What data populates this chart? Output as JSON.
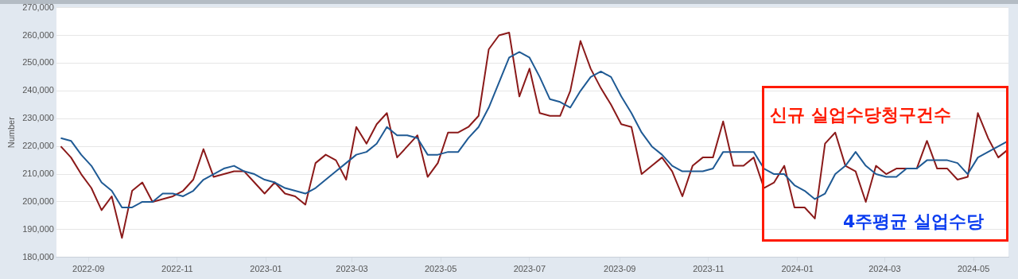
{
  "chart_data": {
    "type": "line",
    "ylabel": "Number",
    "x": [
      "2022-08-13",
      "2022-08-20",
      "2022-08-27",
      "2022-09-03",
      "2022-09-10",
      "2022-09-17",
      "2022-09-24",
      "2022-10-01",
      "2022-10-08",
      "2022-10-15",
      "2022-10-22",
      "2022-10-29",
      "2022-11-05",
      "2022-11-12",
      "2022-11-19",
      "2022-11-26",
      "2022-12-03",
      "2022-12-10",
      "2022-12-17",
      "2022-12-24",
      "2022-12-31",
      "2023-01-07",
      "2023-01-14",
      "2023-01-21",
      "2023-01-28",
      "2023-02-04",
      "2023-02-11",
      "2023-02-18",
      "2023-02-25",
      "2023-03-04",
      "2023-03-11",
      "2023-03-18",
      "2023-03-25",
      "2023-04-01",
      "2023-04-08",
      "2023-04-15",
      "2023-04-22",
      "2023-04-29",
      "2023-05-06",
      "2023-05-13",
      "2023-05-20",
      "2023-05-27",
      "2023-06-03",
      "2023-06-10",
      "2023-06-17",
      "2023-06-24",
      "2023-07-01",
      "2023-07-08",
      "2023-07-15",
      "2023-07-22",
      "2023-07-29",
      "2023-08-05",
      "2023-08-12",
      "2023-08-19",
      "2023-08-26",
      "2023-09-02",
      "2023-09-09",
      "2023-09-16",
      "2023-09-23",
      "2023-09-30",
      "2023-10-07",
      "2023-10-14",
      "2023-10-21",
      "2023-10-28",
      "2023-11-04",
      "2023-11-11",
      "2023-11-18",
      "2023-11-25",
      "2023-12-02",
      "2023-12-09",
      "2023-12-16",
      "2023-12-23",
      "2023-12-30",
      "2024-01-06",
      "2024-01-13",
      "2024-01-20",
      "2024-01-27",
      "2024-02-03",
      "2024-02-10",
      "2024-02-17",
      "2024-02-24",
      "2024-03-02",
      "2024-03-09",
      "2024-03-16",
      "2024-03-23",
      "2024-03-30",
      "2024-04-06",
      "2024-04-13",
      "2024-04-20",
      "2024-04-27",
      "2024-05-04",
      "2024-05-11",
      "2024-05-18",
      "2024-05-25"
    ],
    "series": [
      {
        "color": "#8b1a1a",
        "values": [
          220000,
          216000,
          210000,
          205000,
          197000,
          202000,
          187000,
          204000,
          207000,
          200000,
          201000,
          202000,
          204000,
          208000,
          219000,
          209000,
          210000,
          211000,
          211000,
          207000,
          203000,
          207000,
          203000,
          202000,
          199000,
          214000,
          217000,
          215000,
          208000,
          227000,
          221000,
          228000,
          232000,
          216000,
          220000,
          224000,
          209000,
          214000,
          225000,
          225000,
          227000,
          231000,
          255000,
          260000,
          261000,
          238000,
          248000,
          232000,
          231000,
          231000,
          240000,
          258000,
          248000,
          241000,
          235000,
          228000,
          227000,
          210000,
          213000,
          216000,
          211000,
          202000,
          213000,
          216000,
          216000,
          229000,
          213000,
          213000,
          216000,
          205000,
          207000,
          213000,
          198000,
          198000,
          194000,
          221000,
          225000,
          213000,
          211000,
          200000,
          213000,
          210000,
          212000,
          212000,
          212000,
          222000,
          212000,
          212000,
          208000,
          209000,
          232000,
          223000,
          216000,
          219000
        ]
      },
      {
        "color": "#1f5a94",
        "values": [
          223000,
          222000,
          217000,
          213000,
          207000,
          204000,
          198000,
          198000,
          200000,
          200000,
          203000,
          203000,
          202000,
          204000,
          208000,
          210000,
          212000,
          213000,
          211000,
          210000,
          208000,
          207000,
          205000,
          204000,
          203000,
          205000,
          208000,
          211000,
          214000,
          217000,
          218000,
          221000,
          227000,
          224000,
          224000,
          223000,
          217000,
          217000,
          218000,
          218000,
          223000,
          227000,
          234000,
          243000,
          252000,
          254000,
          252000,
          245000,
          237000,
          236000,
          234000,
          240000,
          245000,
          247000,
          245000,
          238000,
          232000,
          225000,
          220000,
          217000,
          213000,
          211000,
          211000,
          211000,
          212000,
          218000,
          218000,
          218000,
          218000,
          212000,
          210000,
          210000,
          206000,
          204000,
          201000,
          203000,
          210000,
          213000,
          218000,
          213000,
          210000,
          209000,
          209000,
          212000,
          212000,
          215000,
          215000,
          215000,
          214000,
          210000,
          216000,
          218000,
          220000,
          222000
        ]
      }
    ],
    "xlim": [
      "2022-08-10",
      "2024-05-25"
    ],
    "xticks": [
      "2022-09",
      "2022-11",
      "2023-01",
      "2023-03",
      "2023-05",
      "2023-07",
      "2023-09",
      "2023-11",
      "2024-01",
      "2024-03",
      "2024-05"
    ],
    "ylim": [
      180000,
      270000
    ],
    "yticks": [
      {
        "value": 180000,
        "label": "180,000"
      },
      {
        "value": 190000,
        "label": "190,000"
      },
      {
        "value": 200000,
        "label": "200,000"
      },
      {
        "value": 210000,
        "label": "210,000"
      },
      {
        "value": 220000,
        "label": "220,000"
      },
      {
        "value": 230000,
        "label": "230,000"
      },
      {
        "value": 240000,
        "label": "240,000"
      },
      {
        "value": 250000,
        "label": "250,000"
      },
      {
        "value": 260000,
        "label": "260,000"
      },
      {
        "value": 270000,
        "label": "270,000"
      }
    ],
    "grid": "y",
    "legend": false,
    "marker": "none",
    "line_style": "solid",
    "annotations": [
      "신규 실업수당청구건수",
      "4주평균 실업수당"
    ]
  }
}
